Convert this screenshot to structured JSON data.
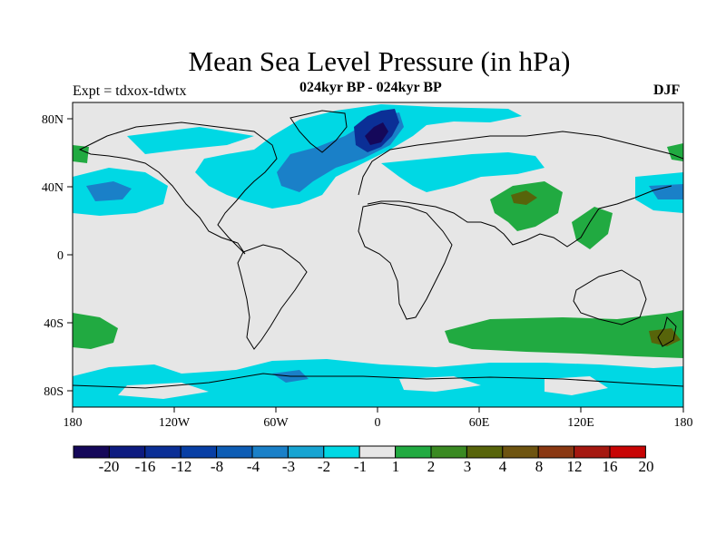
{
  "header": {
    "title": "Mean Sea Level Pressure (in hPa)",
    "subtitle": "024kyr BP - 024kyr BP",
    "experiment": "Expt = tdxox-tdwtx",
    "season": "DJF"
  },
  "axes": {
    "x_ticks": [
      "180",
      "120W",
      "60W",
      "0",
      "60E",
      "120E",
      "180"
    ],
    "y_ticks": [
      "80N",
      "40N",
      "0",
      "40S",
      "80S"
    ]
  },
  "colorbar": {
    "labels": [
      "-20",
      "-16",
      "-12",
      "-8",
      "-4",
      "-3",
      "-2",
      "-1",
      "1",
      "2",
      "3",
      "4",
      "8",
      "12",
      "16",
      "20"
    ],
    "colors": [
      "#15085a",
      "#0d1b80",
      "#0b2f96",
      "#083fa5",
      "#0e5db5",
      "#1a80c8",
      "#17a4d2",
      "#00d8e4",
      "#e6e6e6",
      "#21aa41",
      "#3a8a22",
      "#57640a",
      "#6e5410",
      "#8a3812",
      "#a51810",
      "#c80505"
    ]
  },
  "map": {
    "background_color": "#e6e6e6",
    "projection": "cylindrical-equidistant",
    "lon_range": [
      -180,
      180
    ],
    "lat_range": [
      -90,
      90
    ]
  }
}
